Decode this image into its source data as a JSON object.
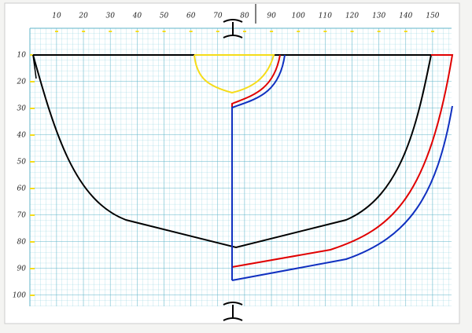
{
  "top_scale": [
    10,
    20,
    30,
    40,
    50,
    60,
    70,
    80,
    90,
    100,
    110,
    120,
    130,
    140,
    150
  ],
  "left_scale": [
    10,
    20,
    30,
    40,
    50,
    60,
    70,
    80,
    90,
    100
  ]
}
